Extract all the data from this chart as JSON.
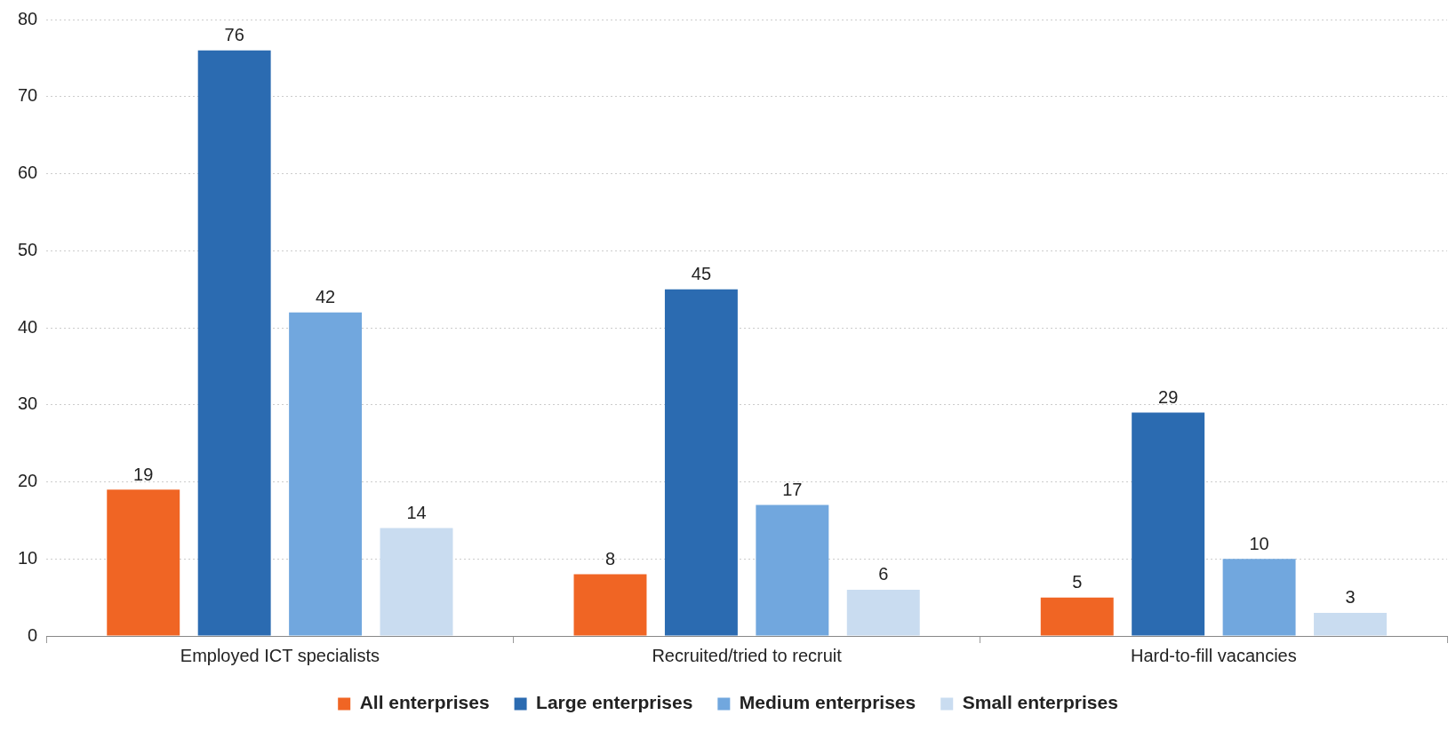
{
  "chart_data": {
    "type": "bar",
    "categories": [
      "Employed ICT specialists",
      "Recruited/tried to recruit",
      "Hard-to-fill vacancies"
    ],
    "series": [
      {
        "name": "All enterprises",
        "color": "#f06524",
        "values": [
          19,
          8,
          5
        ]
      },
      {
        "name": "Large enterprises",
        "color": "#2b6bb1",
        "values": [
          76,
          45,
          29
        ]
      },
      {
        "name": "Medium enterprises",
        "color": "#71a7de",
        "values": [
          42,
          17,
          10
        ]
      },
      {
        "name": "Small enterprises",
        "color": "#c9dcf0",
        "values": [
          14,
          6,
          3
        ]
      }
    ],
    "ylim": [
      0,
      80
    ],
    "yticks": [
      0,
      10,
      20,
      30,
      40,
      50,
      60,
      70,
      80
    ],
    "grid": "y",
    "legend": "bottom",
    "data_labels": true
  }
}
